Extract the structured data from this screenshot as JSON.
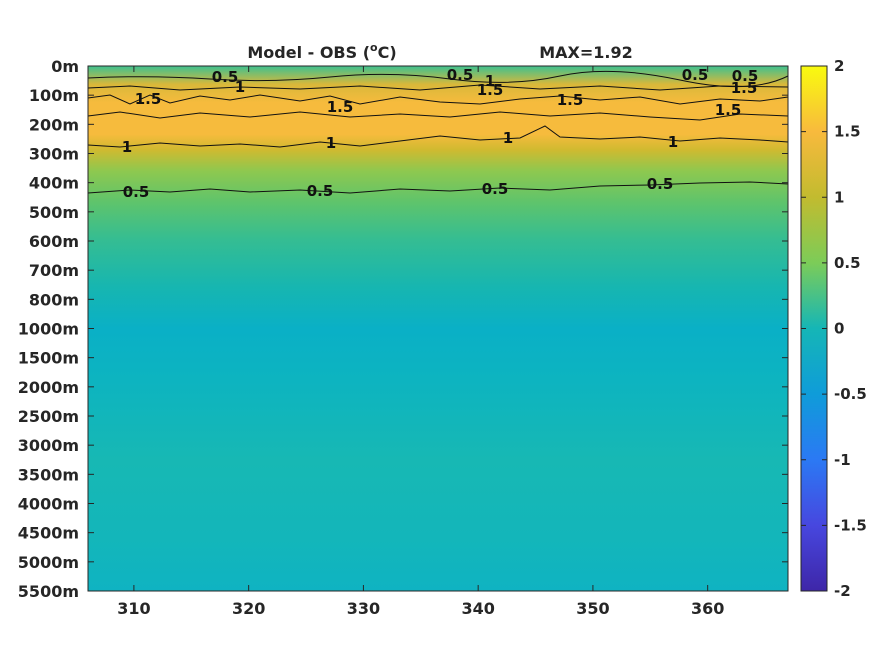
{
  "chart_data": {
    "type": "heatmap",
    "title": "Model - OBS (",
    "title_unit_sup": "o",
    "title_unit_end": "C)",
    "max_label": "MAX=1.92",
    "x": {
      "ticks": [
        310,
        320,
        330,
        340,
        350,
        360
      ],
      "range": [
        306,
        367
      ]
    },
    "y": {
      "tick_labels": [
        "0m",
        "100m",
        "200m",
        "300m",
        "400m",
        "500m",
        "600m",
        "700m",
        "800m",
        "1000m",
        "1500m",
        "2000m",
        "2500m",
        "3000m",
        "3500m",
        "4000m",
        "4500m",
        "5000m",
        "5500m"
      ]
    },
    "colorbar": {
      "range": [
        -2,
        2
      ],
      "tick_labels": [
        "2",
        "1.5",
        "1",
        "0.5",
        "0",
        "-0.5",
        "-1",
        "-1.5",
        "-2"
      ],
      "colormap": "parula"
    },
    "depth_profile": [
      {
        "depth": "0m",
        "value": 0.3
      },
      {
        "depth": "50m",
        "value": 1.2
      },
      {
        "depth": "100m",
        "value": 1.45
      },
      {
        "depth": "200m",
        "value": 1.55
      },
      {
        "depth": "300m",
        "value": 1.0
      },
      {
        "depth": "400m",
        "value": 0.5
      },
      {
        "depth": "500m",
        "value": 0.35
      },
      {
        "depth": "600m",
        "value": 0.2
      },
      {
        "depth": "800m",
        "value": 0.08
      },
      {
        "depth": "1000m",
        "value": 0.03
      },
      {
        "depth": "1500m",
        "value": 0.06
      },
      {
        "depth": "2500m",
        "value": 0.15
      },
      {
        "depth": "3500m",
        "value": 0.15
      },
      {
        "depth": "4500m",
        "value": 0.1
      },
      {
        "depth": "5500m",
        "value": 0.08
      }
    ],
    "contours": [
      {
        "level": 0.5,
        "labels": [
          "0.5",
          "0.5",
          "0.5",
          "0.5"
        ]
      },
      {
        "level": 1,
        "labels": [
          "1",
          "1",
          "1",
          "1"
        ]
      },
      {
        "level": 1.5,
        "labels": [
          "1.5",
          "1.5",
          "1.5",
          "1.5"
        ]
      },
      {
        "level": 1,
        "labels": [
          "1",
          "1",
          "1"
        ]
      },
      {
        "level": 0.5,
        "labels": [
          "0.5",
          "0.5",
          "0.5"
        ]
      }
    ]
  }
}
